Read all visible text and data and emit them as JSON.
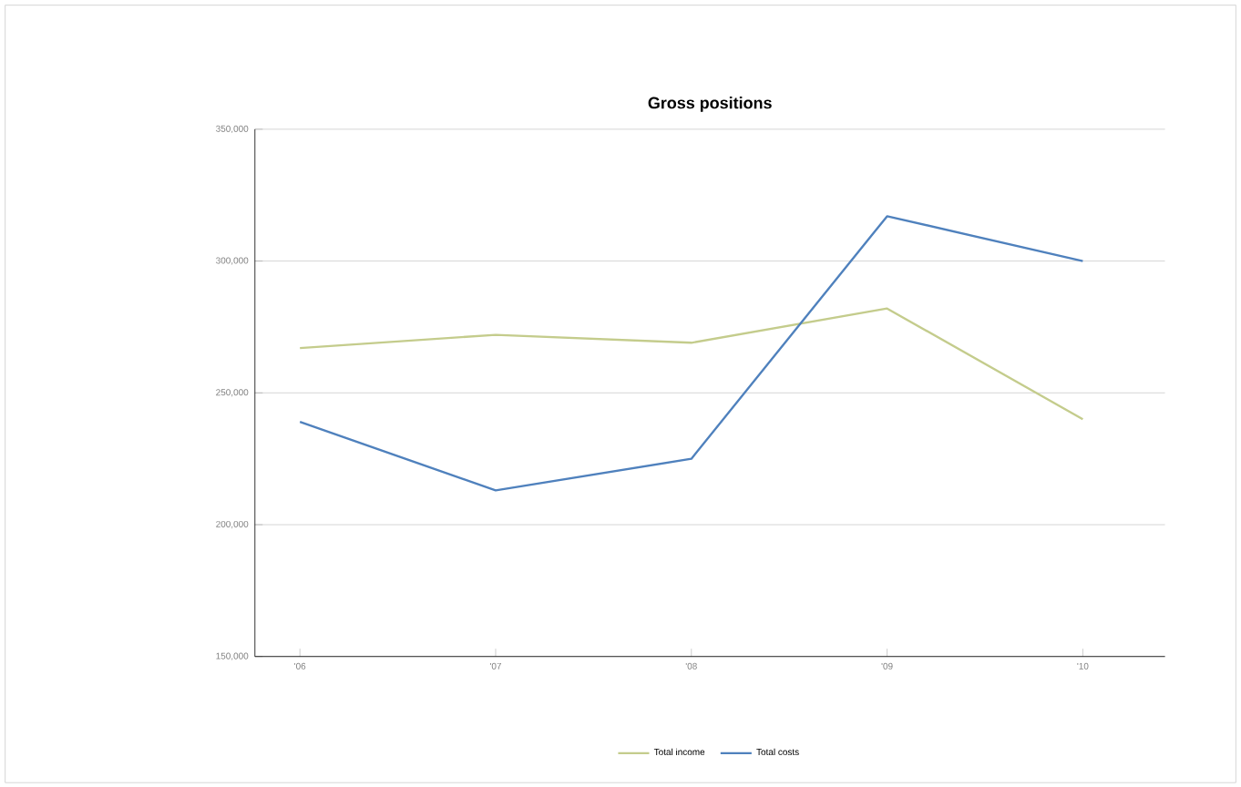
{
  "chart_data": {
    "type": "line",
    "title": "Gross positions",
    "categories": [
      "'06",
      "'07",
      "'08",
      "'09",
      "'10"
    ],
    "series": [
      {
        "name": "Total income",
        "color": "#c4cc8c",
        "values": [
          267000,
          272000,
          269000,
          282000,
          240000
        ]
      },
      {
        "name": "Total costs",
        "color": "#4f81bd",
        "values": [
          239000,
          213000,
          225000,
          317000,
          300000
        ]
      }
    ],
    "ylim": [
      150000,
      350000
    ],
    "yticks": [
      {
        "value": 150000,
        "label": "150,000"
      },
      {
        "value": 200000,
        "label": "200,000"
      },
      {
        "value": 250000,
        "label": "250,000"
      },
      {
        "value": 300000,
        "label": "300,000"
      },
      {
        "value": 350000,
        "label": "350,000"
      }
    ],
    "grid": "y",
    "legend": "bottom",
    "marker": "none",
    "line_style": "solid"
  }
}
